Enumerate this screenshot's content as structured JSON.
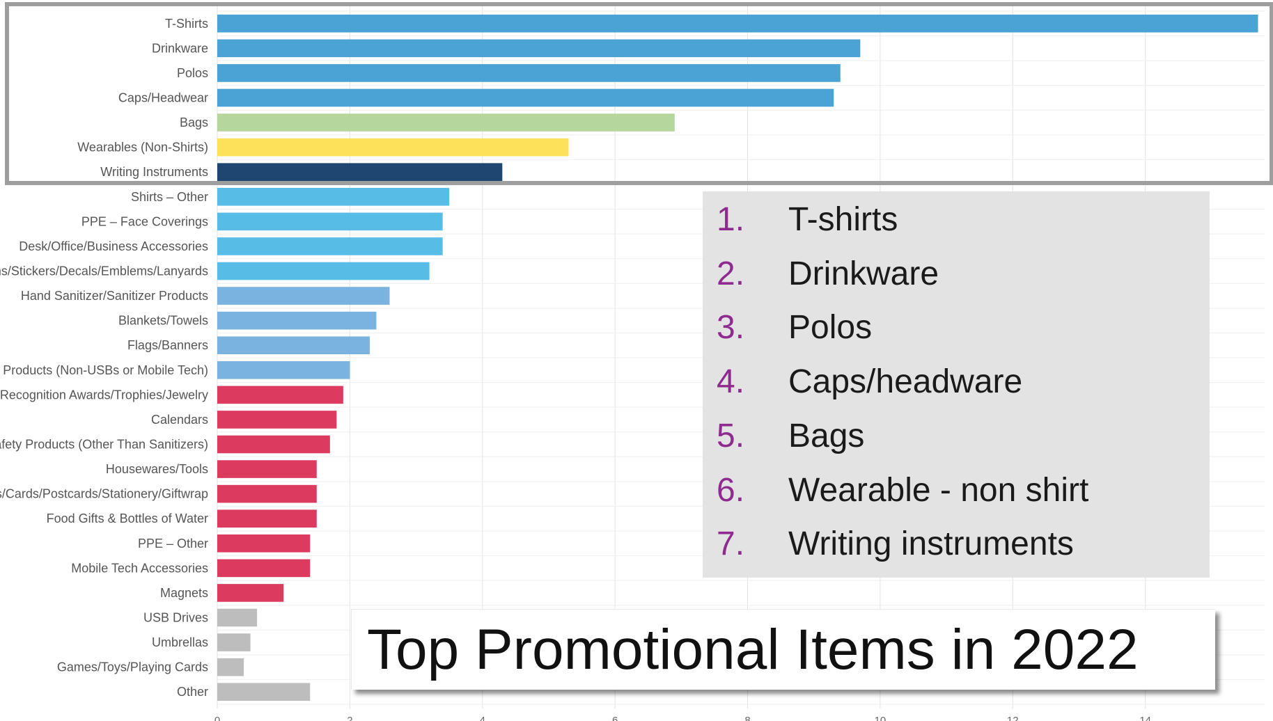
{
  "chart_data": {
    "type": "bar",
    "orientation": "horizontal",
    "categories": [
      "T-Shirts",
      "Drinkware",
      "Polos",
      "Caps/Headwear",
      "Bags",
      "Wearables (Non-Shirts)",
      "Writing Instruments",
      "Shirts – Other",
      "PPE – Face Coverings",
      "Desk/Office/Business Accessories",
      "ons/Stickers/Decals/Emblems/Lanyards",
      "Hand Sanitizer/Sanitizer Products",
      "Blankets/Towels",
      "Flags/Banners",
      "ed Products (Non-USBs or Mobile Tech)",
      "Recognition Awards/Trophies/Jewelry",
      "Calendars",
      "Safety Products (Other Than Sanitizers)",
      "Housewares/Tools",
      "oks/Cards/Postcards/Stationery/Giftwrap",
      "Food Gifts & Bottles of Water",
      "PPE – Other",
      "Mobile Tech Accessories",
      "Magnets",
      "USB Drives",
      "Umbrellas",
      "Games/Toys/Playing Cards",
      "Other"
    ],
    "values": [
      15.7,
      9.7,
      9.4,
      9.3,
      6.9,
      5.3,
      4.3,
      3.5,
      3.4,
      3.4,
      3.2,
      2.6,
      2.4,
      2.3,
      2.0,
      1.9,
      1.8,
      1.7,
      1.5,
      1.5,
      1.5,
      1.4,
      1.4,
      1.0,
      0.6,
      0.5,
      0.4,
      1.4
    ],
    "colors": [
      "#4aa3d4",
      "#4aa3d4",
      "#4aa3d4",
      "#4aa3d4",
      "#b5d69c",
      "#fde15a",
      "#1f4670",
      "#58bde6",
      "#58bde6",
      "#58bde6",
      "#58bde6",
      "#7ab2e0",
      "#7ab2e0",
      "#7ab2e0",
      "#7ab2e0",
      "#dc3a5f",
      "#dc3a5f",
      "#dc3a5f",
      "#dc3a5f",
      "#dc3a5f",
      "#dc3a5f",
      "#dc3a5f",
      "#dc3a5f",
      "#dc3a5f",
      "#bdbdbe",
      "#bdbdbe",
      "#bdbdbe",
      "#bdbdbe"
    ],
    "xlim": [
      0,
      15.8
    ],
    "xticks": [
      "0",
      "2",
      "4",
      "6",
      "8",
      "10",
      "12",
      "14"
    ],
    "grid": true,
    "highlight_color": "#9e9e9e",
    "title": "",
    "xlabel": "",
    "ylabel": ""
  },
  "legend": {
    "items": [
      {
        "num": "1.",
        "label": "T-shirts"
      },
      {
        "num": "2.",
        "label": "Drinkware"
      },
      {
        "num": "3.",
        "label": "Polos"
      },
      {
        "num": "4.",
        "label": "Caps/headware"
      },
      {
        "num": "5.",
        "label": "Bags"
      },
      {
        "num": "6.",
        "label": "Wearable - non shirt"
      },
      {
        "num": "7.",
        "label": "Writing instruments"
      }
    ]
  },
  "overlay_title": "Top Promotional Items in 2022"
}
